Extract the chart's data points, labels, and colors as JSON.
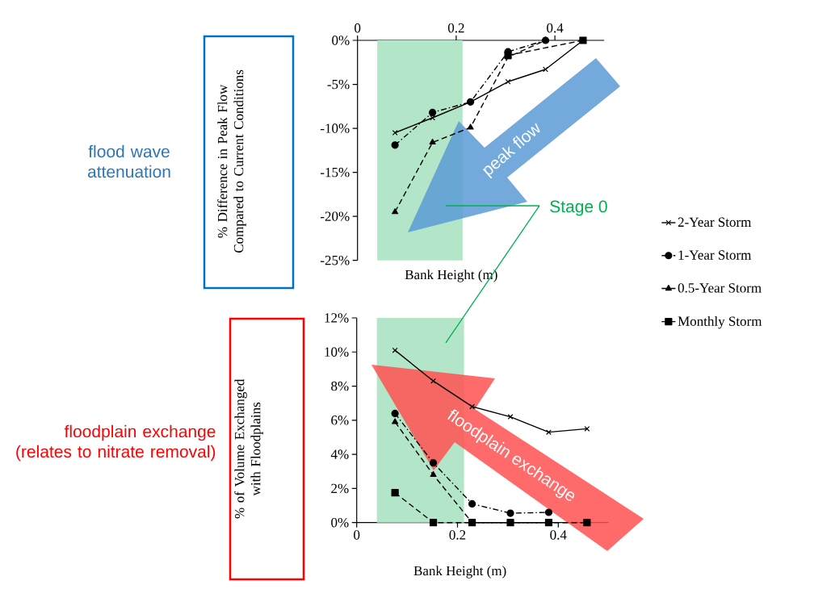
{
  "chart_data": [
    {
      "type": "line",
      "xlabel": "Bank Height (m)",
      "ylabel": "% Difference in Peak Flow Compared to Current Conditions",
      "xlim": [
        0,
        0.5
      ],
      "xticks": [
        0,
        0.2,
        0.4
      ],
      "ylim": [
        -25,
        0
      ],
      "yticks": [
        {
          "value": 0,
          "label": "0%"
        },
        {
          "value": -5,
          "label": "-5%"
        },
        {
          "value": -10,
          "label": "-10%"
        },
        {
          "value": -15,
          "label": "-15%"
        },
        {
          "value": -20,
          "label": "-20%"
        },
        {
          "value": -25,
          "label": "-25%"
        }
      ],
      "legend": "right",
      "x": [
        0.076,
        0.152,
        0.229,
        0.305,
        0.381,
        0.457
      ],
      "series": [
        {
          "name": "2-Year Storm",
          "color": "#000000",
          "marker": "cross",
          "line_style": "solid",
          "values": [
            -10.5,
            -8.8,
            -7.0,
            -4.7,
            -3.3,
            0
          ]
        },
        {
          "name": "1-Year Storm",
          "color": "#000000",
          "marker": "circle",
          "line_style": "dashdot",
          "values": [
            -11.9,
            -8.2,
            -7.0,
            -1.3,
            0,
            null
          ]
        },
        {
          "name": "0.5-Year Storm",
          "color": "#000000",
          "marker": "triangle",
          "line_style": "dashed",
          "values": [
            -19.5,
            -11.6,
            -9.9,
            -1.9,
            0,
            null
          ]
        },
        {
          "name": "Monthly Storm",
          "color": "#000000",
          "marker": "square",
          "line_style": "dashed",
          "x": [
            0.305,
            0.457
          ],
          "values": [
            -1.7,
            0
          ]
        }
      ],
      "bands": [
        {
          "axis": "x",
          "from": 0.04,
          "to": 0.213,
          "label": "Stage 0",
          "color": "#b3e6c9"
        }
      ],
      "annotations": [
        "flood wave attenuation",
        "peak flow"
      ]
    },
    {
      "type": "line",
      "xlabel": "Bank Height (m)",
      "ylabel": "% of Volume Exchanged with Floodplains",
      "xlim": [
        0,
        0.5
      ],
      "xticks": [
        0,
        0.2,
        0.4
      ],
      "ylim": [
        0,
        12
      ],
      "yticks": [
        {
          "value": 0,
          "label": "0%"
        },
        {
          "value": 2,
          "label": "2%"
        },
        {
          "value": 4,
          "label": "4%"
        },
        {
          "value": 6,
          "label": "6%"
        },
        {
          "value": 8,
          "label": "8%"
        },
        {
          "value": 10,
          "label": "10%"
        },
        {
          "value": 12,
          "label": "12%"
        }
      ],
      "x": [
        0.076,
        0.152,
        0.229,
        0.305,
        0.381,
        0.457
      ],
      "series": [
        {
          "color": "#000000",
          "marker": "cross",
          "line_style": "solid",
          "values": [
            10.1,
            8.3,
            6.8,
            6.2,
            5.3,
            5.5
          ]
        },
        {
          "color": "#000000",
          "marker": "circle",
          "line_style": "dashdot",
          "values": [
            6.4,
            3.5,
            1.1,
            0.55,
            0.6,
            null
          ]
        },
        {
          "color": "#000000",
          "marker": "triangle",
          "line_style": "dashed",
          "values": [
            5.9,
            2.8,
            0,
            0,
            0,
            null
          ]
        },
        {
          "color": "#000000",
          "marker": "square",
          "line_style": "dashed",
          "values": [
            1.75,
            0,
            0,
            0,
            0,
            0
          ]
        }
      ],
      "bands": [
        {
          "axis": "x",
          "from": 0.04,
          "to": 0.213,
          "color": "#b3e6c9"
        }
      ],
      "annotations": [
        "floodplain exchange (relates to nitrate removal)",
        "floodplain exchange"
      ]
    }
  ]
}
